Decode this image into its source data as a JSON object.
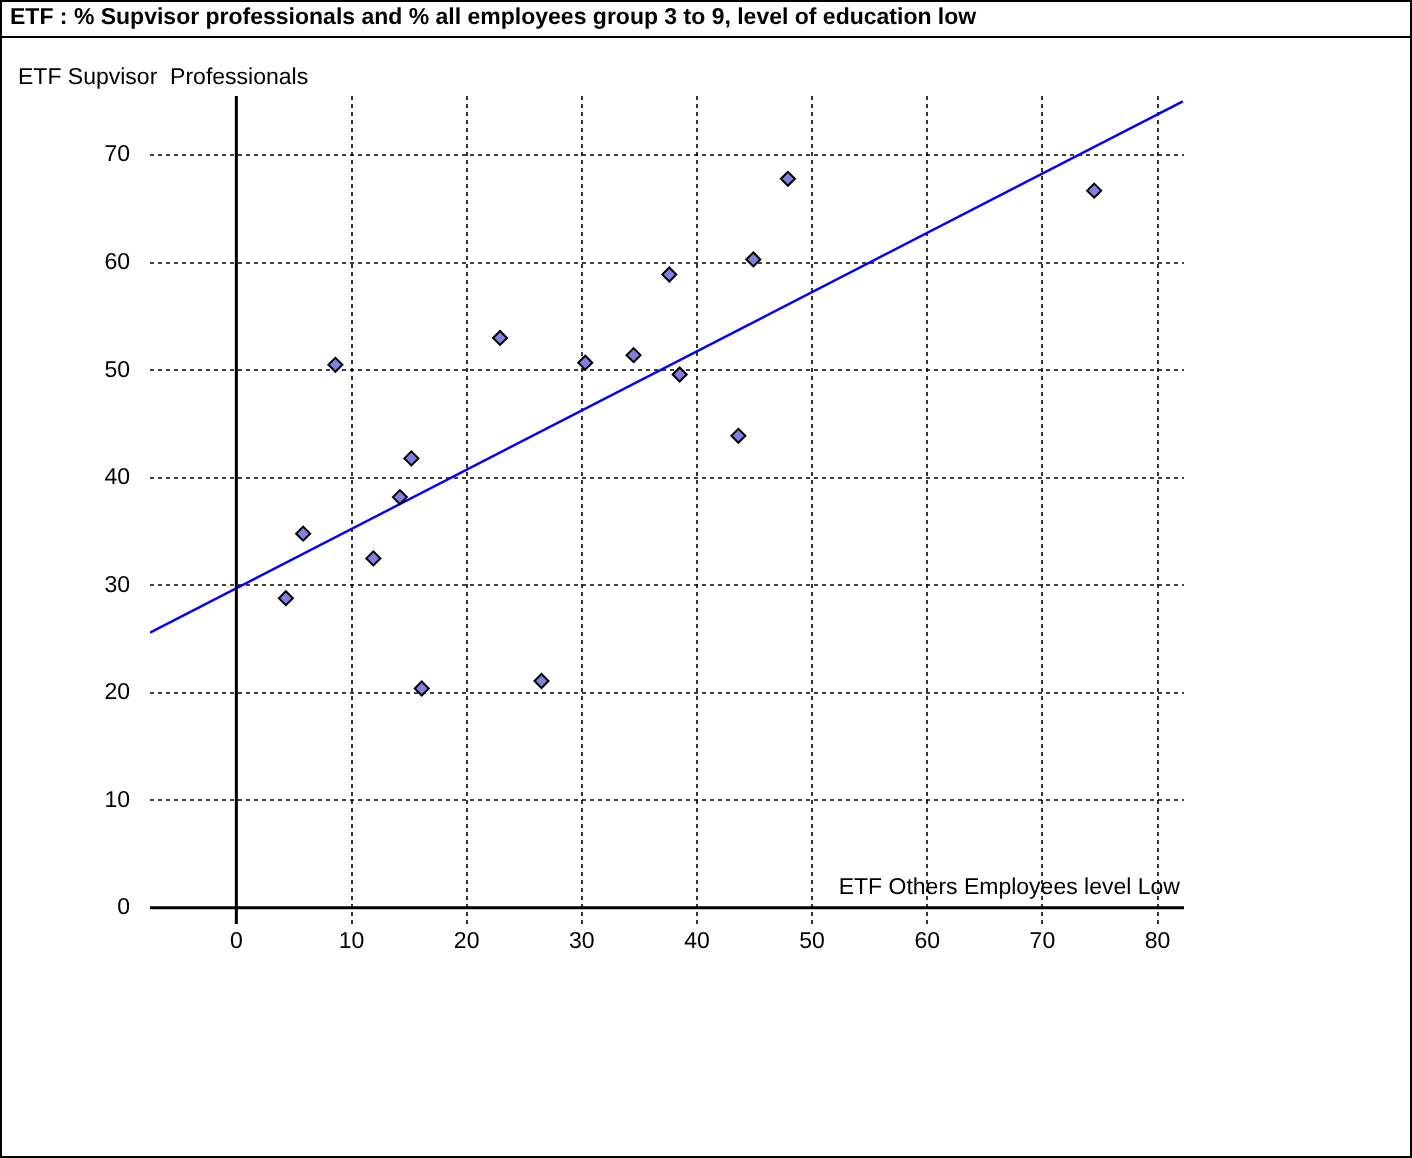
{
  "chart_data": {
    "type": "scatter",
    "title": "ETF : % Supvisor professionals and % all employees group 3 to 9, level of education low",
    "xlabel": "ETF Others Employees level Low",
    "ylabel": "ETF Supvisor  Professionals",
    "xlim": [
      -7.5,
      82.3
    ],
    "ylim": [
      -1.5,
      75.5
    ],
    "xticks": [
      0,
      10,
      20,
      30,
      40,
      50,
      60,
      70,
      80
    ],
    "yticks": [
      0,
      10,
      20,
      30,
      40,
      50,
      60,
      70
    ],
    "grid": true,
    "legend": false,
    "marker": "diamond",
    "series": [
      {
        "color": "#8080e0",
        "x": [
          4.3,
          5.8,
          8.6,
          11.9,
          14.2,
          15.2,
          16.1,
          22.9,
          26.5,
          30.3,
          34.5,
          37.6,
          38.5,
          43.6,
          44.9,
          47.9,
          74.5
        ],
        "values": [
          28.8,
          34.8,
          50.5,
          32.5,
          38.2,
          41.8,
          20.4,
          53.0,
          21.1,
          50.7,
          51.4,
          58.9,
          49.6,
          43.9,
          60.3,
          67.8,
          66.7
        ]
      },
      {
        "type": "line",
        "color": "#0000ff",
        "marker": "none",
        "x": [
          -7.5,
          82.2
        ],
        "values": [
          25.6,
          75.0
        ]
      }
    ]
  }
}
